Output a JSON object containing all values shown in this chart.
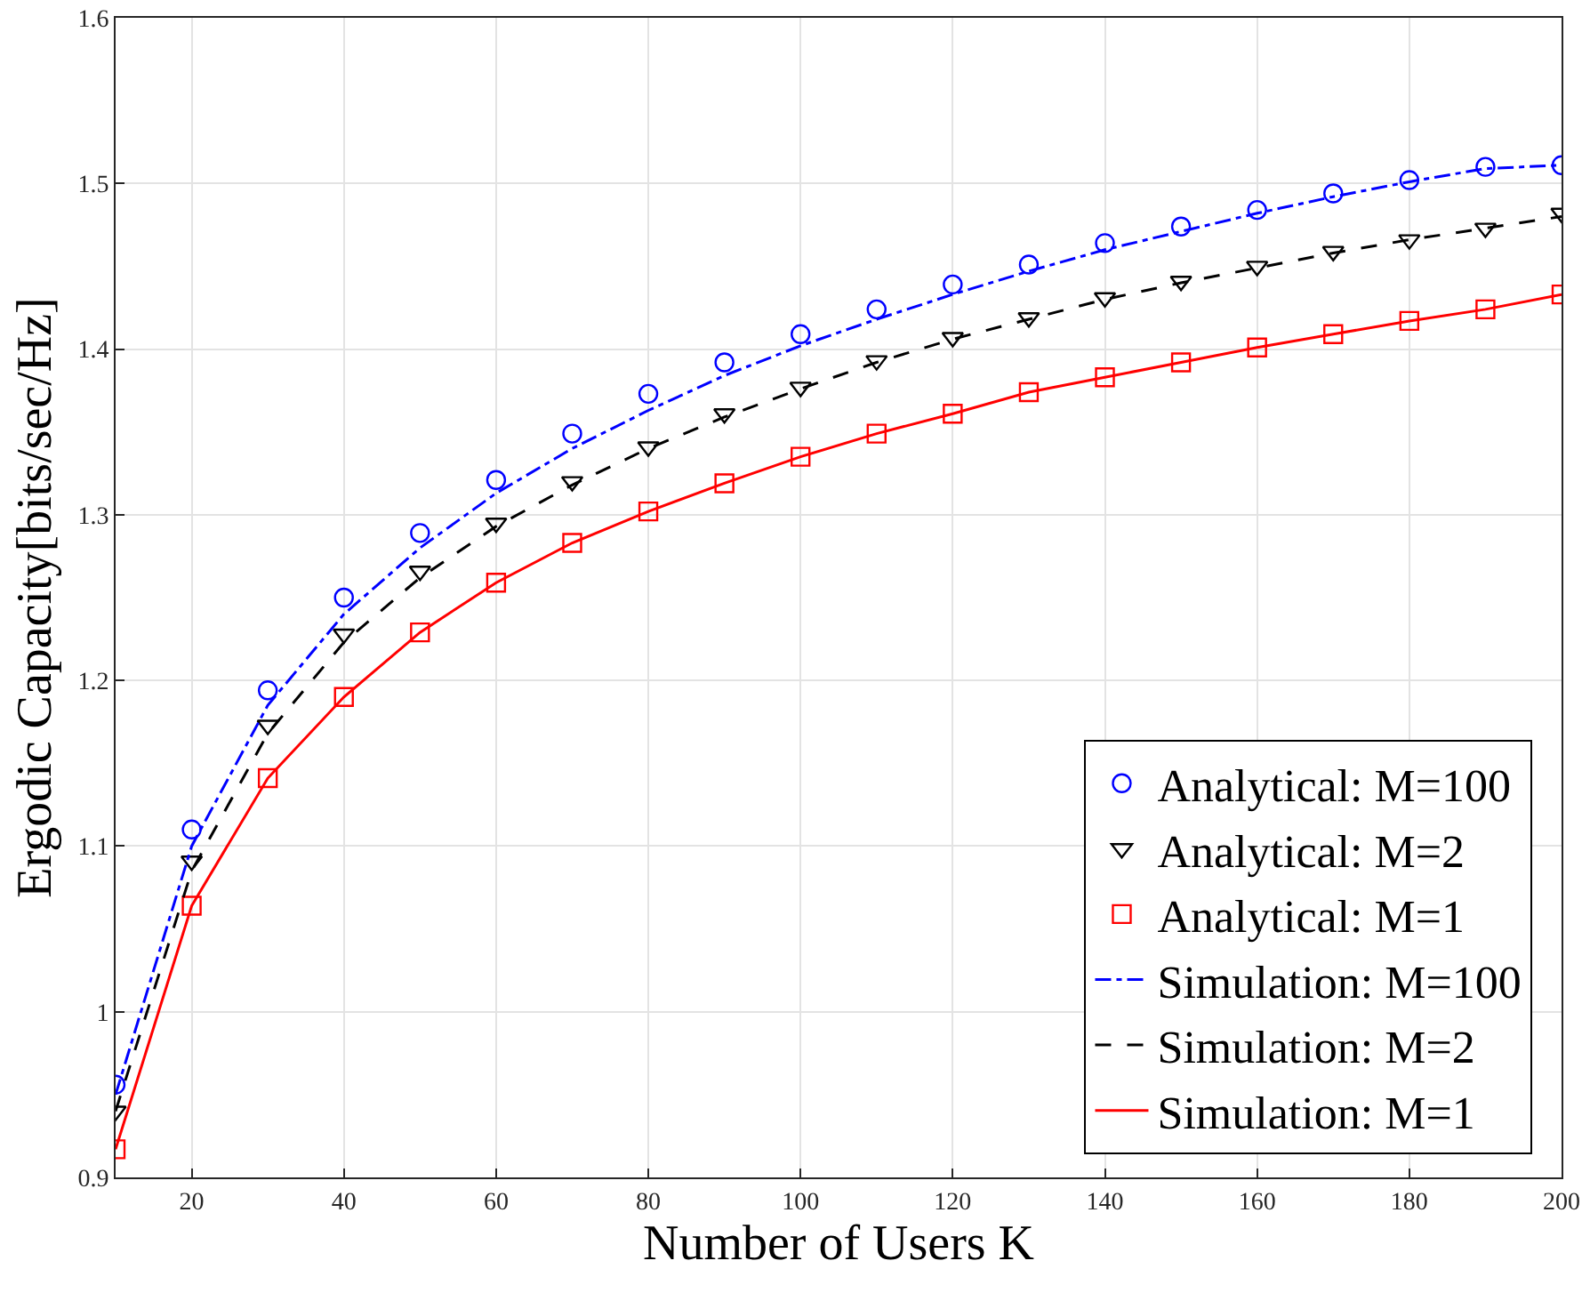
{
  "chart_data": {
    "type": "line",
    "xlabel": "Number of Users K",
    "ylabel": "Ergodic Capacity[bits/sec/Hz]",
    "x": [
      10,
      20,
      30,
      40,
      50,
      60,
      70,
      80,
      90,
      100,
      110,
      120,
      130,
      140,
      150,
      160,
      170,
      180,
      190,
      200
    ],
    "xlim": [
      10,
      200
    ],
    "xticks": [
      20,
      40,
      60,
      80,
      100,
      120,
      140,
      160,
      180,
      200
    ],
    "ylim": [
      0.9,
      1.6
    ],
    "yticks": [
      0.9,
      1,
      1.1,
      1.2,
      1.3,
      1.4,
      1.5,
      1.6
    ],
    "grid": true,
    "legend": "bottom right",
    "series": [
      {
        "name": "Analytical: M=100",
        "type": "scatter",
        "marker": "circle",
        "color": "#0000ff",
        "values": [
          0.956,
          1.11,
          1.194,
          1.25,
          1.289,
          1.321,
          1.349,
          1.373,
          1.392,
          1.409,
          1.424,
          1.439,
          1.451,
          1.464,
          1.474,
          1.484,
          1.494,
          1.502,
          1.51,
          1.511
        ]
      },
      {
        "name": "Analytical: M=2",
        "type": "scatter",
        "marker": "triangle",
        "color": "#000000",
        "values": [
          0.94,
          1.091,
          1.173,
          1.228,
          1.266,
          1.295,
          1.32,
          1.341,
          1.361,
          1.377,
          1.393,
          1.407,
          1.419,
          1.431,
          1.441,
          1.45,
          1.459,
          1.466,
          1.473,
          1.482
        ]
      },
      {
        "name": "Analytical: M=1",
        "type": "scatter",
        "marker": "square",
        "color": "#ff0000",
        "values": [
          0.917,
          1.064,
          1.141,
          1.19,
          1.229,
          1.259,
          1.283,
          1.302,
          1.319,
          1.335,
          1.349,
          1.361,
          1.374,
          1.383,
          1.392,
          1.401,
          1.409,
          1.417,
          1.424,
          1.433
        ]
      },
      {
        "name": "Simulation: M=100",
        "marker": "none",
        "line_style": "dashdot",
        "color": "#0000ff",
        "values": [
          0.95,
          1.1,
          1.185,
          1.24,
          1.28,
          1.313,
          1.34,
          1.363,
          1.384,
          1.402,
          1.418,
          1.433,
          1.447,
          1.46,
          1.471,
          1.482,
          1.492,
          1.501,
          1.509,
          1.511
        ]
      },
      {
        "name": "Simulation: M=2",
        "marker": "none",
        "line_style": "dashed",
        "color": "#000000",
        "values": [
          0.94,
          1.085,
          1.168,
          1.223,
          1.262,
          1.293,
          1.318,
          1.34,
          1.359,
          1.376,
          1.392,
          1.406,
          1.418,
          1.43,
          1.44,
          1.449,
          1.458,
          1.466,
          1.473,
          1.48
        ]
      },
      {
        "name": "Simulation: M=1",
        "marker": "none",
        "line_style": "solid",
        "color": "#ff0000",
        "values": [
          0.917,
          1.064,
          1.141,
          1.19,
          1.229,
          1.259,
          1.283,
          1.302,
          1.319,
          1.335,
          1.349,
          1.361,
          1.374,
          1.383,
          1.392,
          1.401,
          1.409,
          1.417,
          1.424,
          1.433
        ]
      }
    ]
  }
}
